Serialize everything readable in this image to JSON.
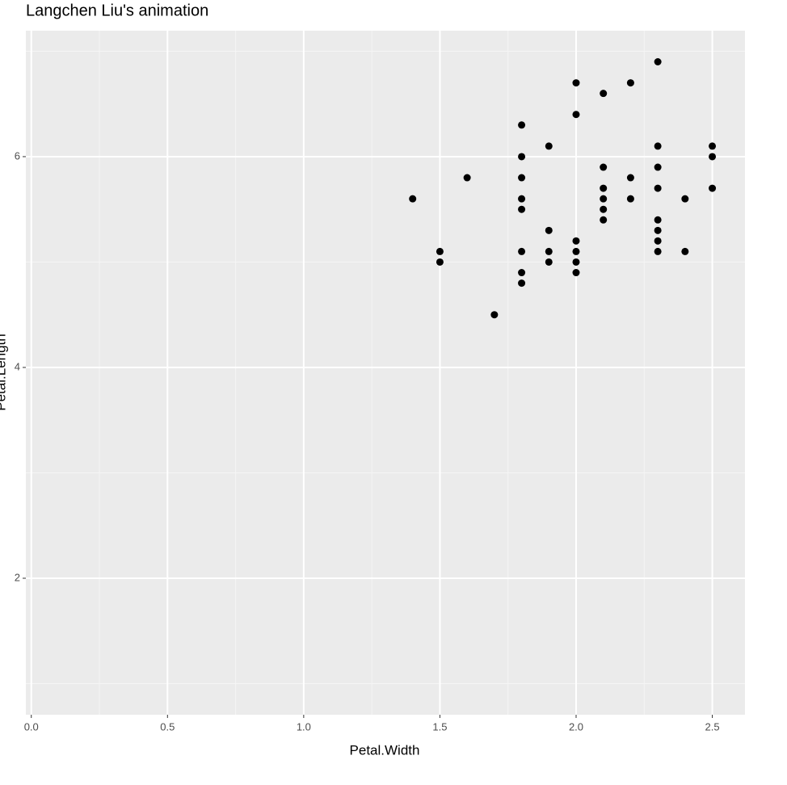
{
  "chart_data": {
    "type": "scatter",
    "title": "Langchen Liu's animation",
    "x_label": "Petal.Width",
    "y_label": "Petal.Length",
    "x": [
      1.4,
      1.5,
      1.5,
      1.6,
      1.7,
      1.8,
      1.8,
      1.8,
      1.8,
      1.8,
      1.8,
      1.8,
      1.8,
      1.9,
      1.9,
      1.9,
      1.9,
      2.0,
      2.0,
      2.0,
      2.0,
      2.0,
      2.0,
      2.1,
      2.1,
      2.1,
      2.1,
      2.1,
      2.1,
      2.2,
      2.2,
      2.2,
      2.3,
      2.3,
      2.3,
      2.3,
      2.3,
      2.3,
      2.3,
      2.3,
      2.4,
      2.4,
      2.5,
      2.5,
      2.5
    ],
    "values": [
      5.6,
      5.1,
      5.0,
      5.8,
      4.5,
      6.3,
      6.0,
      5.8,
      5.6,
      5.5,
      5.1,
      4.9,
      4.8,
      6.1,
      5.3,
      5.1,
      5.0,
      6.7,
      6.4,
      5.2,
      5.1,
      5.0,
      4.9,
      6.6,
      5.9,
      5.7,
      5.6,
      5.5,
      5.4,
      6.7,
      5.8,
      5.6,
      6.9,
      6.1,
      5.9,
      5.7,
      5.4,
      5.3,
      5.2,
      5.1,
      5.6,
      5.1,
      6.1,
      6.0,
      5.7
    ],
    "color": "#000000",
    "xlim": [
      -0.02,
      2.62
    ],
    "xticks": [
      {
        "value": 0,
        "label": "0.0"
      },
      0.5,
      {
        "value": 1,
        "label": "1.0"
      },
      1.5,
      {
        "value": 2,
        "label": "2.0"
      },
      2.5
    ],
    "xminorticks": [
      0.25,
      0.75,
      1.25,
      1.75,
      2.25
    ],
    "ylim": [
      0.705,
      7.195
    ],
    "yticks": [
      2,
      4,
      6
    ],
    "yminorticks": [
      1,
      3,
      5,
      7
    ],
    "grid": true
  }
}
